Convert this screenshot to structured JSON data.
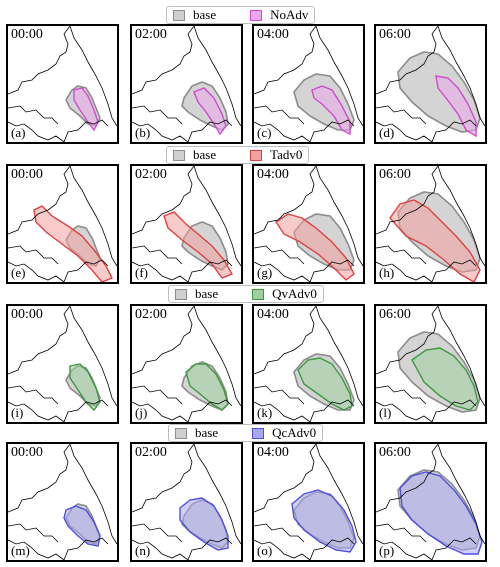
{
  "times": [
    "00:00",
    "02:00",
    "04:00",
    "06:00"
  ],
  "rows": [
    {
      "legend": {
        "base": "base",
        "exp": "NoAdv"
      },
      "color": "#d04ad0",
      "fill": "#e9a8e9",
      "letters": [
        "(a)",
        "(b)",
        "(c)",
        "(d)"
      ]
    },
    {
      "legend": {
        "base": "base",
        "exp": "Tadv0"
      },
      "color": "#e04040",
      "fill": "#f2a0a0",
      "letters": [
        "(e)",
        "(f)",
        "(g)",
        "(h)"
      ]
    },
    {
      "legend": {
        "base": "base",
        "exp": "QvAdv0"
      },
      "color": "#3e9a3e",
      "fill": "#9fcf9f",
      "letters": [
        "(i)",
        "(j)",
        "(k)",
        "(l)"
      ]
    },
    {
      "legend": {
        "base": "base",
        "exp": "QcAdv0"
      },
      "color": "#4f4fe0",
      "fill": "#a9a9f0",
      "letters": [
        "(m)",
        "(n)",
        "(o)",
        "(p)"
      ]
    }
  ],
  "base_style": {
    "color": "#8c8c8c",
    "fill": "#cfcfcf"
  }
}
